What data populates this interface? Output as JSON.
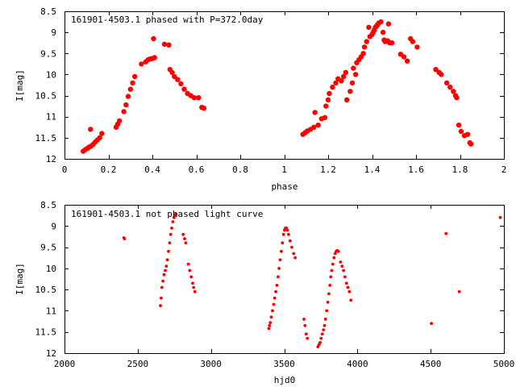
{
  "chart_data": [
    {
      "type": "scatter",
      "title": "161901-4503.1 phased with P=372.0day",
      "xlabel": "phase",
      "ylabel": "I[mag]",
      "xlim": [
        0,
        2
      ],
      "ylim": [
        12,
        8.5
      ],
      "y_inverted": true,
      "x_ticks": [
        "0",
        "0.2",
        "0.4",
        "0.6",
        "0.8",
        "1",
        "1.2",
        "1.4",
        "1.6",
        "1.8",
        "2"
      ],
      "y_ticks": [
        "8.5",
        "9",
        "9.5",
        "10",
        "10.5",
        "11",
        "11.5",
        "12"
      ],
      "marker_color": "#ff0000",
      "marker": "filled circle (large)",
      "series": [
        {
          "points": [
            [
              0.085,
              11.82
            ],
            [
              0.095,
              11.78
            ],
            [
              0.105,
              11.75
            ],
            [
              0.112,
              11.72
            ],
            [
              0.118,
              11.3
            ],
            [
              0.12,
              11.7
            ],
            [
              0.13,
              11.66
            ],
            [
              0.14,
              11.6
            ],
            [
              0.15,
              11.55
            ],
            [
              0.16,
              11.5
            ],
            [
              0.17,
              11.4
            ],
            [
              0.235,
              11.25
            ],
            [
              0.242,
              11.18
            ],
            [
              0.25,
              11.1
            ],
            [
              0.27,
              10.88
            ],
            [
              0.28,
              10.72
            ],
            [
              0.29,
              10.52
            ],
            [
              0.3,
              10.35
            ],
            [
              0.31,
              10.2
            ],
            [
              0.32,
              10.05
            ],
            [
              0.35,
              9.75
            ],
            [
              0.37,
              9.7
            ],
            [
              0.38,
              9.65
            ],
            [
              0.39,
              9.63
            ],
            [
              0.4,
              9.62
            ],
            [
              0.405,
              9.15
            ],
            [
              0.41,
              9.6
            ],
            [
              0.455,
              9.28
            ],
            [
              0.475,
              9.3
            ],
            [
              0.48,
              9.88
            ],
            [
              0.49,
              9.95
            ],
            [
              0.5,
              10.05
            ],
            [
              0.515,
              10.12
            ],
            [
              0.53,
              10.22
            ],
            [
              0.545,
              10.35
            ],
            [
              0.56,
              10.45
            ],
            [
              0.575,
              10.5
            ],
            [
              0.59,
              10.55
            ],
            [
              0.61,
              10.55
            ],
            [
              0.625,
              10.78
            ],
            [
              0.635,
              10.8
            ],
            [
              1.085,
              11.42
            ],
            [
              1.095,
              11.38
            ],
            [
              1.105,
              11.34
            ],
            [
              1.12,
              11.3
            ],
            [
              1.135,
              11.25
            ],
            [
              1.14,
              10.9
            ],
            [
              1.155,
              11.2
            ],
            [
              1.17,
              11.05
            ],
            [
              1.185,
              11.02
            ],
            [
              1.19,
              10.75
            ],
            [
              1.2,
              10.6
            ],
            [
              1.205,
              10.45
            ],
            [
              1.22,
              10.3
            ],
            [
              1.235,
              10.2
            ],
            [
              1.245,
              10.1
            ],
            [
              1.26,
              10.15
            ],
            [
              1.27,
              10.05
            ],
            [
              1.28,
              9.95
            ],
            [
              1.285,
              10.6
            ],
            [
              1.3,
              10.4
            ],
            [
              1.31,
              10.2
            ],
            [
              1.315,
              9.85
            ],
            [
              1.325,
              10.0
            ],
            [
              1.33,
              9.72
            ],
            [
              1.34,
              9.65
            ],
            [
              1.35,
              9.58
            ],
            [
              1.36,
              9.5
            ],
            [
              1.365,
              9.35
            ],
            [
              1.375,
              9.22
            ],
            [
              1.385,
              8.88
            ],
            [
              1.39,
              9.1
            ],
            [
              1.4,
              9.05
            ],
            [
              1.405,
              9.0
            ],
            [
              1.41,
              8.95
            ],
            [
              1.415,
              8.88
            ],
            [
              1.42,
              8.85
            ],
            [
              1.425,
              8.82
            ],
            [
              1.43,
              8.78
            ],
            [
              1.44,
              8.75
            ],
            [
              1.45,
              9.0
            ],
            [
              1.455,
              9.18
            ],
            [
              1.46,
              9.22
            ],
            [
              1.47,
              9.2
            ],
            [
              1.475,
              8.8
            ],
            [
              1.48,
              9.25
            ],
            [
              1.49,
              9.25
            ],
            [
              1.53,
              9.52
            ],
            [
              1.545,
              9.58
            ],
            [
              1.56,
              9.68
            ],
            [
              1.575,
              9.15
            ],
            [
              1.585,
              9.22
            ],
            [
              1.605,
              9.35
            ],
            [
              1.69,
              9.88
            ],
            [
              1.705,
              9.95
            ],
            [
              1.715,
              10.0
            ],
            [
              1.74,
              10.2
            ],
            [
              1.755,
              10.3
            ],
            [
              1.77,
              10.4
            ],
            [
              1.78,
              10.5
            ],
            [
              1.785,
              10.55
            ],
            [
              1.795,
              11.2
            ],
            [
              1.805,
              11.35
            ],
            [
              1.82,
              11.45
            ],
            [
              1.835,
              11.42
            ],
            [
              1.845,
              11.62
            ],
            [
              1.85,
              11.65
            ]
          ]
        }
      ]
    },
    {
      "type": "scatter",
      "title": "161901-4503.1 not phased light curve",
      "xlabel": "hjd0",
      "ylabel": "I[mag]",
      "xlim": [
        2000,
        5000
      ],
      "ylim": [
        12,
        8.5
      ],
      "y_inverted": true,
      "x_ticks": [
        "2000",
        "2500",
        "3000",
        "3500",
        "4000",
        "4500",
        "5000"
      ],
      "y_ticks": [
        "8.5",
        "9",
        "9.5",
        "10",
        "10.5",
        "11",
        "11.5",
        "12"
      ],
      "marker_color": "#ff0000",
      "marker": "filled circle (small)",
      "series": [
        {
          "points": [
            [
              2405,
              9.28
            ],
            [
              2410,
              9.3
            ],
            [
              2655,
              10.88
            ],
            [
              2660,
              10.7
            ],
            [
              2665,
              10.45
            ],
            [
              2672,
              10.3
            ],
            [
              2680,
              10.15
            ],
            [
              2688,
              10.05
            ],
            [
              2695,
              9.95
            ],
            [
              2702,
              9.8
            ],
            [
              2710,
              9.6
            ],
            [
              2718,
              9.4
            ],
            [
              2725,
              9.2
            ],
            [
              2732,
              9.05
            ],
            [
              2740,
              8.9
            ],
            [
              2748,
              8.8
            ],
            [
              2755,
              8.75
            ],
            [
              2760,
              8.72
            ],
            [
              2810,
              9.2
            ],
            [
              2820,
              9.3
            ],
            [
              2828,
              9.4
            ],
            [
              2845,
              9.9
            ],
            [
              2855,
              10.05
            ],
            [
              2865,
              10.2
            ],
            [
              2875,
              10.35
            ],
            [
              2882,
              10.45
            ],
            [
              2890,
              10.55
            ],
            [
              3395,
              11.42
            ],
            [
              3400,
              11.35
            ],
            [
              3405,
              11.28
            ],
            [
              3412,
              11.15
            ],
            [
              3420,
              11.0
            ],
            [
              3428,
              10.85
            ],
            [
              3435,
              10.7
            ],
            [
              3442,
              10.55
            ],
            [
              3450,
              10.4
            ],
            [
              3458,
              10.2
            ],
            [
              3465,
              10.0
            ],
            [
              3472,
              9.8
            ],
            [
              3480,
              9.6
            ],
            [
              3488,
              9.4
            ],
            [
              3495,
              9.2
            ],
            [
              3502,
              9.1
            ],
            [
              3508,
              9.05
            ],
            [
              3515,
              9.05
            ],
            [
              3522,
              9.1
            ],
            [
              3530,
              9.2
            ],
            [
              3540,
              9.35
            ],
            [
              3552,
              9.5
            ],
            [
              3565,
              9.65
            ],
            [
              3575,
              9.75
            ],
            [
              3635,
              11.2
            ],
            [
              3642,
              11.35
            ],
            [
              3650,
              11.55
            ],
            [
              3658,
              11.65
            ],
            [
              3730,
              11.85
            ],
            [
              3738,
              11.8
            ],
            [
              3745,
              11.75
            ],
            [
              3752,
              11.65
            ],
            [
              3760,
              11.55
            ],
            [
              3768,
              11.45
            ],
            [
              3775,
              11.35
            ],
            [
              3782,
              11.2
            ],
            [
              3790,
              11.0
            ],
            [
              3798,
              10.8
            ],
            [
              3805,
              10.6
            ],
            [
              3812,
              10.4
            ],
            [
              3818,
              10.2
            ],
            [
              3825,
              10.05
            ],
            [
              3832,
              9.9
            ],
            [
              3840,
              9.75
            ],
            [
              3848,
              9.65
            ],
            [
              3855,
              9.6
            ],
            [
              3862,
              9.58
            ],
            [
              3870,
              9.6
            ],
            [
              3885,
              9.85
            ],
            [
              3895,
              9.95
            ],
            [
              3905,
              10.05
            ],
            [
              3915,
              10.2
            ],
            [
              3925,
              10.35
            ],
            [
              3935,
              10.45
            ],
            [
              3945,
              10.55
            ],
            [
              3955,
              10.75
            ],
            [
              4505,
              11.3
            ],
            [
              4605,
              9.18
            ],
            [
              4695,
              10.55
            ],
            [
              4975,
              8.8
            ]
          ]
        }
      ]
    }
  ]
}
